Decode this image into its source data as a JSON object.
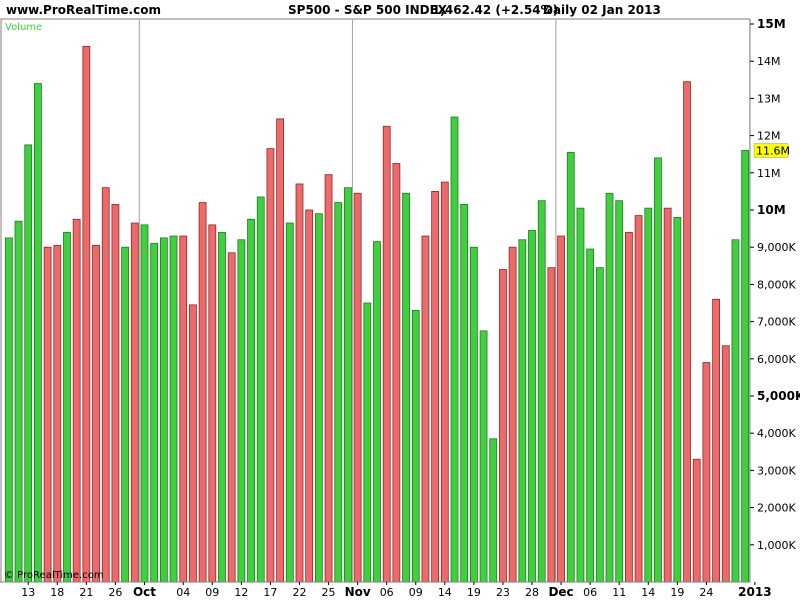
{
  "header": {
    "site": "www.ProRealTime.com",
    "instrument": "SP500 - S&P 500 INDEX",
    "price": "1,462.42 (+2.54%)",
    "period": "Daily  02 Jan 2013"
  },
  "panel_label": "Volume",
  "copyright": "© ProRealTime.com",
  "last_value_label": "11.6M",
  "colors": {
    "up": "#3fcf3f",
    "down": "#ec6a6a",
    "bg": "#ffffff",
    "grid": "#c0c0c0",
    "label_bg": "#ffff00"
  },
  "chart_data": {
    "type": "bar",
    "ylim": [
      0,
      15000000
    ],
    "y_ticks": [
      {
        "value": 1000000,
        "label": "1,000K",
        "major": false
      },
      {
        "value": 2000000,
        "label": "2,000K",
        "major": false
      },
      {
        "value": 3000000,
        "label": "3,000K",
        "major": false
      },
      {
        "value": 4000000,
        "label": "4,000K",
        "major": false
      },
      {
        "value": 5000000,
        "label": "5,000K",
        "major": true
      },
      {
        "value": 6000000,
        "label": "6,000K",
        "major": false
      },
      {
        "value": 7000000,
        "label": "7,000K",
        "major": false
      },
      {
        "value": 8000000,
        "label": "8,000K",
        "major": false
      },
      {
        "value": 9000000,
        "label": "9,000K",
        "major": false
      },
      {
        "value": 10000000,
        "label": "10M",
        "major": true
      },
      {
        "value": 11000000,
        "label": "11M",
        "major": false
      },
      {
        "value": 12000000,
        "label": "12M",
        "major": false
      },
      {
        "value": 13000000,
        "label": "13M",
        "major": false
      },
      {
        "value": 14000000,
        "label": "14M",
        "major": false
      },
      {
        "value": 15000000,
        "label": "15M",
        "major": true
      }
    ],
    "x_ticks": [
      {
        "index": 2,
        "label": "13",
        "major": false
      },
      {
        "index": 5,
        "label": "18",
        "major": false
      },
      {
        "index": 8,
        "label": "21",
        "major": false
      },
      {
        "index": 11,
        "label": "26",
        "major": false
      },
      {
        "index": 14,
        "label": "Oct",
        "major": true
      },
      {
        "index": 18,
        "label": "04",
        "major": false
      },
      {
        "index": 21,
        "label": "09",
        "major": false
      },
      {
        "index": 24,
        "label": "12",
        "major": false
      },
      {
        "index": 27,
        "label": "17",
        "major": false
      },
      {
        "index": 30,
        "label": "22",
        "major": false
      },
      {
        "index": 33,
        "label": "25",
        "major": false
      },
      {
        "index": 36,
        "label": "Nov",
        "major": true
      },
      {
        "index": 39,
        "label": "06",
        "major": false
      },
      {
        "index": 42,
        "label": "09",
        "major": false
      },
      {
        "index": 45,
        "label": "14",
        "major": false
      },
      {
        "index": 48,
        "label": "19",
        "major": false
      },
      {
        "index": 51,
        "label": "23",
        "major": false
      },
      {
        "index": 54,
        "label": "28",
        "major": false
      },
      {
        "index": 57,
        "label": "Dec",
        "major": true
      },
      {
        "index": 60,
        "label": "06",
        "major": false
      },
      {
        "index": 63,
        "label": "11",
        "major": false
      },
      {
        "index": 66,
        "label": "14",
        "major": false
      },
      {
        "index": 69,
        "label": "19",
        "major": false
      },
      {
        "index": 72,
        "label": "24",
        "major": false
      },
      {
        "index": 77,
        "label": "2013",
        "major": true
      }
    ],
    "month_lines": [
      14,
      36,
      57,
      77
    ],
    "values": [
      9250000,
      9700000,
      11750000,
      13400000,
      9000000,
      9050000,
      9400000,
      9750000,
      14400000,
      9050000,
      10600000,
      10150000,
      9000000,
      9650000,
      9600000,
      9100000,
      9250000,
      9300000,
      9300000,
      7450000,
      10200000,
      9600000,
      9400000,
      8850000,
      9200000,
      9750000,
      10350000,
      11650000,
      12450000,
      9650000,
      10700000,
      10000000,
      9900000,
      10950000,
      10200000,
      10600000,
      10450000,
      7500000,
      9150000,
      12250000,
      11250000,
      10450000,
      7300000,
      9300000,
      10500000,
      10750000,
      12500000,
      10150000,
      9000000,
      6750000,
      3850000,
      8400000,
      9000000,
      9200000,
      9450000,
      10250000,
      8450000,
      9300000,
      11550000,
      10050000,
      8950000,
      8450000,
      10450000,
      10250000,
      9400000,
      9850000,
      10050000,
      11400000,
      10050000,
      9800000,
      13450000,
      3300000,
      5900000,
      7600000,
      6350000,
      9200000,
      11600000
    ],
    "up": [
      1,
      1,
      1,
      1,
      0,
      0,
      1,
      0,
      0,
      0,
      0,
      0,
      1,
      0,
      1,
      1,
      1,
      1,
      0,
      0,
      0,
      0,
      1,
      0,
      1,
      1,
      1,
      0,
      0,
      1,
      0,
      0,
      1,
      0,
      1,
      1,
      0,
      1,
      1,
      0,
      0,
      1,
      1,
      0,
      0,
      0,
      1,
      1,
      1,
      1,
      1,
      0,
      0,
      1,
      1,
      1,
      0,
      0,
      1,
      1,
      1,
      1,
      1,
      1,
      0,
      0,
      1,
      1,
      0,
      1,
      0,
      0,
      0,
      0,
      0,
      1,
      1
    ]
  }
}
